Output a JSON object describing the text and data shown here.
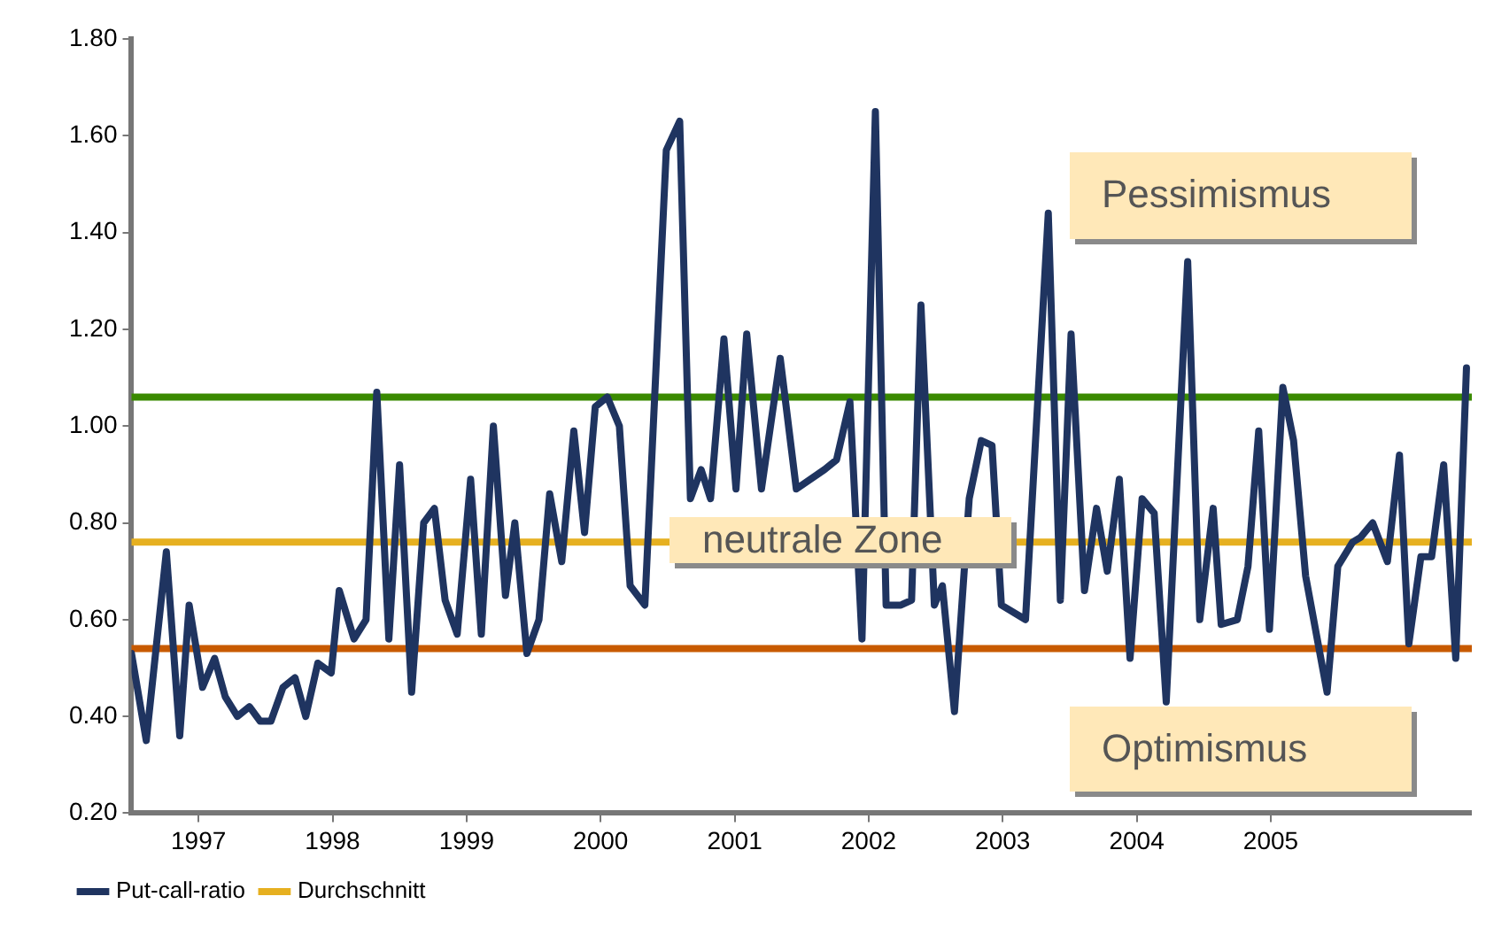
{
  "chart_data": {
    "type": "line",
    "annotations": [
      "Pessimismus",
      "neutrale Zone",
      "Optimismus"
    ],
    "xlim": [
      1997,
      2007
    ],
    "xticks": [
      {
        "value": 1997.5,
        "label": "1997"
      },
      {
        "value": 1998.5,
        "label": "1998"
      },
      {
        "value": 1999.5,
        "label": "1999"
      },
      {
        "value": 2000.5,
        "label": "2000"
      },
      {
        "value": 2001.5,
        "label": "2001"
      },
      {
        "value": 2002.5,
        "label": "2002"
      },
      {
        "value": 2003.5,
        "label": "2003"
      },
      {
        "value": 2004.5,
        "label": "2004"
      },
      {
        "value": 2005.5,
        "label": "2005"
      }
    ],
    "ylim": [
      0.2,
      1.8
    ],
    "yticks": [
      {
        "value": 0.2,
        "label": "0.20"
      },
      {
        "value": 0.4,
        "label": "0.40"
      },
      {
        "value": 0.6,
        "label": "0.60"
      },
      {
        "value": 0.8,
        "label": "0.80"
      },
      {
        "value": 1.0,
        "label": "1.00"
      },
      {
        "value": 1.2,
        "label": "1.20"
      },
      {
        "value": 1.4,
        "label": "1.40"
      },
      {
        "value": 1.6,
        "label": "1.60"
      },
      {
        "value": 1.8,
        "label": "1.80"
      }
    ],
    "legend": "bottom left",
    "marker": "none",
    "series": [
      {
        "name": "Put-call-ratio",
        "color": "#1f3460",
        "x": [
          1997.0,
          1997.11,
          1997.26,
          1997.36,
          1997.43,
          1997.53,
          1997.62,
          1997.7,
          1997.79,
          1997.88,
          1997.96,
          1998.04,
          1998.13,
          1998.22,
          1998.3,
          1998.39,
          1998.49,
          1998.55,
          1998.66,
          1998.75,
          1998.83,
          1998.92,
          1999.0,
          1999.09,
          1999.18,
          1999.26,
          1999.34,
          1999.43,
          1999.53,
          1999.61,
          1999.7,
          1999.79,
          1999.86,
          1999.95,
          2000.04,
          2000.12,
          2000.21,
          2000.3,
          2000.38,
          2000.46,
          2000.55,
          2000.64,
          2000.72,
          2000.83,
          2000.99,
          2001.09,
          2001.17,
          2001.25,
          2001.32,
          2001.42,
          2001.51,
          2001.59,
          2001.7,
          2001.84,
          2001.96,
          2002.17,
          2002.26,
          2002.36,
          2002.45,
          2002.55,
          2002.63,
          2002.74,
          2002.82,
          2002.89,
          2002.99,
          2003.05,
          2003.14,
          2003.25,
          2003.34,
          2003.42,
          2003.49,
          2003.67,
          2003.84,
          2003.93,
          2004.01,
          2004.11,
          2004.2,
          2004.28,
          2004.37,
          2004.45,
          2004.54,
          2004.63,
          2004.72,
          2004.88,
          2004.97,
          2005.07,
          2005.13,
          2005.25,
          2005.33,
          2005.41,
          2005.49,
          2005.59,
          2005.67,
          2005.76,
          2005.92,
          2006.0,
          2006.11,
          2006.17,
          2006.26,
          2006.37,
          2006.46,
          2006.53,
          2006.62,
          2006.7,
          2006.79,
          2006.88,
          2006.96
        ],
        "values": [
          0.53,
          0.35,
          0.74,
          0.36,
          0.63,
          0.46,
          0.52,
          0.44,
          0.4,
          0.42,
          0.39,
          0.39,
          0.46,
          0.48,
          0.4,
          0.51,
          0.49,
          0.66,
          0.56,
          0.6,
          1.07,
          0.56,
          0.92,
          0.45,
          0.8,
          0.83,
          0.64,
          0.57,
          0.89,
          0.57,
          1.0,
          0.65,
          0.8,
          0.53,
          0.6,
          0.86,
          0.72,
          0.99,
          0.78,
          1.04,
          1.06,
          1.0,
          0.67,
          0.63,
          1.57,
          1.63,
          0.85,
          0.91,
          0.85,
          1.18,
          0.87,
          1.19,
          0.87,
          1.14,
          0.87,
          0.91,
          0.93,
          1.05,
          0.56,
          1.65,
          0.63,
          0.63,
          0.64,
          1.25,
          0.63,
          0.67,
          0.41,
          0.85,
          0.97,
          0.96,
          0.63,
          0.6,
          1.44,
          0.64,
          1.19,
          0.66,
          0.83,
          0.7,
          0.89,
          0.52,
          0.85,
          0.82,
          0.43,
          1.34,
          0.6,
          0.83,
          0.59,
          0.6,
          0.71,
          0.99,
          0.58,
          1.08,
          0.97,
          0.69,
          0.45,
          0.71,
          0.76,
          0.77,
          0.8,
          0.72,
          0.94,
          0.55,
          0.73,
          0.73,
          0.92,
          0.52,
          1.12
        ]
      },
      {
        "name": "Durchschnitt",
        "color": "#e6b020",
        "x": [
          1997,
          2007
        ],
        "values": [
          0.76,
          0.76
        ]
      }
    ],
    "ref_lines": [
      {
        "axis": "y",
        "value": 1.06,
        "color": "#3a8a00"
      },
      {
        "axis": "y",
        "value": 0.54,
        "color": "#c85a00"
      }
    ]
  }
}
